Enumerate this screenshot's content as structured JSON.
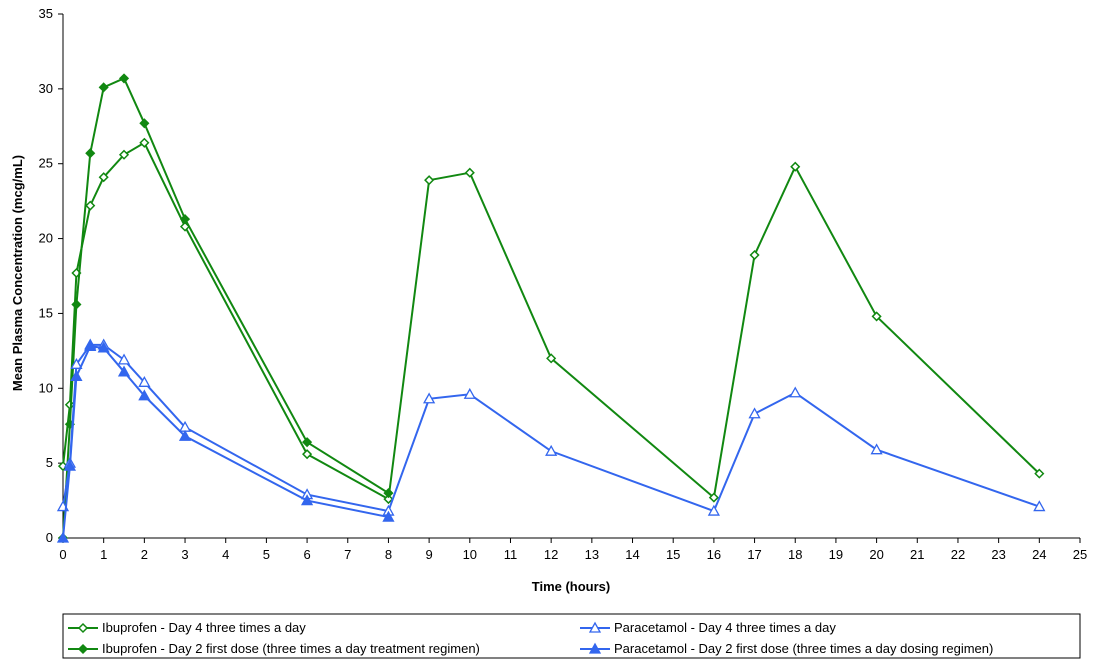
{
  "chart_data": {
    "type": "line",
    "title": "",
    "xlabel": "Time (hours)",
    "ylabel": "Mean Plasma Concentration (mcg/mL)",
    "xlim": [
      0,
      25
    ],
    "ylim": [
      0,
      35
    ],
    "xticks": [
      0,
      1,
      2,
      3,
      4,
      5,
      6,
      7,
      8,
      9,
      10,
      11,
      12,
      13,
      14,
      15,
      16,
      17,
      18,
      19,
      20,
      21,
      22,
      23,
      24,
      25
    ],
    "yticks": [
      0,
      5,
      10,
      15,
      20,
      25,
      30,
      35
    ],
    "grid": false,
    "legend_position": "bottom",
    "series": [
      {
        "name": "Ibuprofen - Day 4 three times a day",
        "color": "#118811",
        "marker": "diamond-open",
        "x": [
          0,
          0.17,
          0.33,
          0.67,
          1,
          1.5,
          2,
          3,
          6,
          8,
          9,
          10,
          12,
          16,
          17,
          18,
          20,
          24
        ],
        "y": [
          4.8,
          8.9,
          17.7,
          22.2,
          24.1,
          25.6,
          26.4,
          20.8,
          5.6,
          2.6,
          23.9,
          24.4,
          12.0,
          2.7,
          18.9,
          24.8,
          14.8,
          4.3
        ]
      },
      {
        "name": "Ibuprofen - Day 2 first dose (three times a day treatment regimen)",
        "color": "#118811",
        "marker": "diamond-filled",
        "x": [
          0,
          0.17,
          0.33,
          0.67,
          1,
          1.5,
          2,
          3,
          6,
          8
        ],
        "y": [
          0,
          7.6,
          15.6,
          25.7,
          30.1,
          30.7,
          27.7,
          21.3,
          6.4,
          3.0
        ]
      },
      {
        "name": "Paracetamol - Day 4 three times a day",
        "color": "#3366ee",
        "marker": "triangle-open",
        "x": [
          0,
          0.17,
          0.33,
          0.67,
          1,
          1.5,
          2,
          3,
          6,
          8,
          9,
          10,
          12,
          16,
          17,
          18,
          20,
          24
        ],
        "y": [
          2.1,
          5.0,
          11.6,
          12.9,
          12.9,
          11.9,
          10.4,
          7.4,
          2.9,
          1.8,
          9.3,
          9.6,
          5.8,
          1.8,
          8.3,
          9.7,
          5.9,
          2.1
        ]
      },
      {
        "name": "Paracetamol - Day 2 first dose (three times a day dosing regimen)",
        "color": "#3366ee",
        "marker": "triangle-filled",
        "x": [
          0,
          0.17,
          0.33,
          0.67,
          1,
          1.5,
          2,
          3,
          6,
          8
        ],
        "y": [
          0,
          4.8,
          10.8,
          12.8,
          12.7,
          11.1,
          9.5,
          6.8,
          2.5,
          1.4
        ]
      }
    ]
  }
}
